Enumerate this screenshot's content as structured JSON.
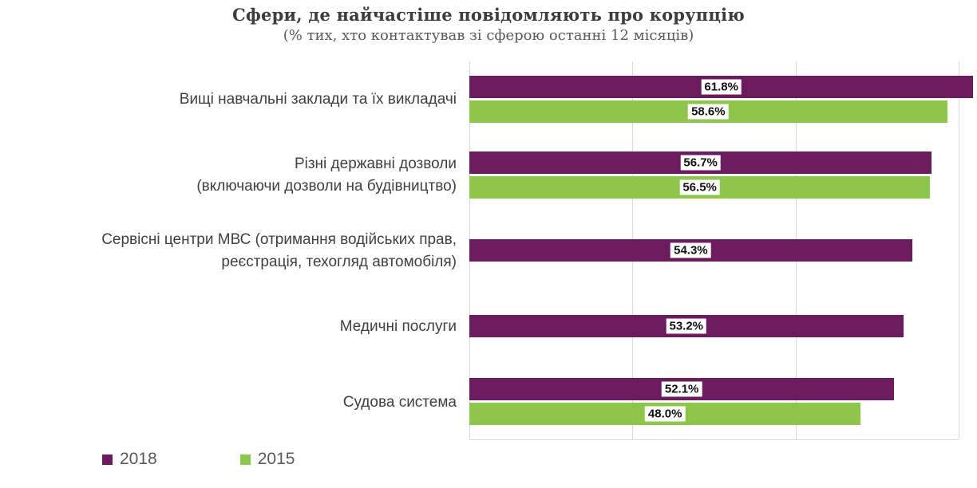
{
  "title": "Сфери, де найчастіше повідомляють про корупцію",
  "subtitle": "(% тих, хто контактував зі сферою останні 12 місяців)",
  "colors": {
    "series_2018": "#6b1b5e",
    "series_2015": "#8ec64c",
    "grid": "#d9d9d9"
  },
  "legend": {
    "items": [
      {
        "label": "2018",
        "color": "#6b1b5e"
      },
      {
        "label": "2015",
        "color": "#8ec64c"
      }
    ]
  },
  "chart_data": {
    "type": "bar",
    "orientation": "horizontal",
    "title": "Сфери, де найчастіше повідомляють про корупцію",
    "subtitle": "(% тих, хто контактував зі сферою останні 12 місяців)",
    "xmin": 0,
    "xmax": 60,
    "grid_step": 20,
    "grid": true,
    "legend_position": "bottom-left",
    "categories": [
      [
        "Вищі навчальні заклади та їх викладачі"
      ],
      [
        "Різні державні дозволи",
        "(включаючи дозволи на будівництво)"
      ],
      [
        "Сервісні центри МВС (отримання водійських прав,",
        "реєстрація, техогляд автомобіля)"
      ],
      [
        "Медичні послуги"
      ],
      [
        "Судова система"
      ]
    ],
    "series": [
      {
        "name": "2018",
        "color": "#6b1b5e",
        "values": [
          61.8,
          56.7,
          54.3,
          53.2,
          52.1
        ],
        "labels": [
          "61.8%",
          "56.7%",
          "54.3%",
          "53.2%",
          "52.1%"
        ]
      },
      {
        "name": "2015",
        "color": "#8ec64c",
        "values": [
          58.6,
          56.5,
          null,
          null,
          48.0
        ],
        "labels": [
          "58.6%",
          "56.5%",
          null,
          null,
          "48.0%"
        ]
      }
    ]
  }
}
